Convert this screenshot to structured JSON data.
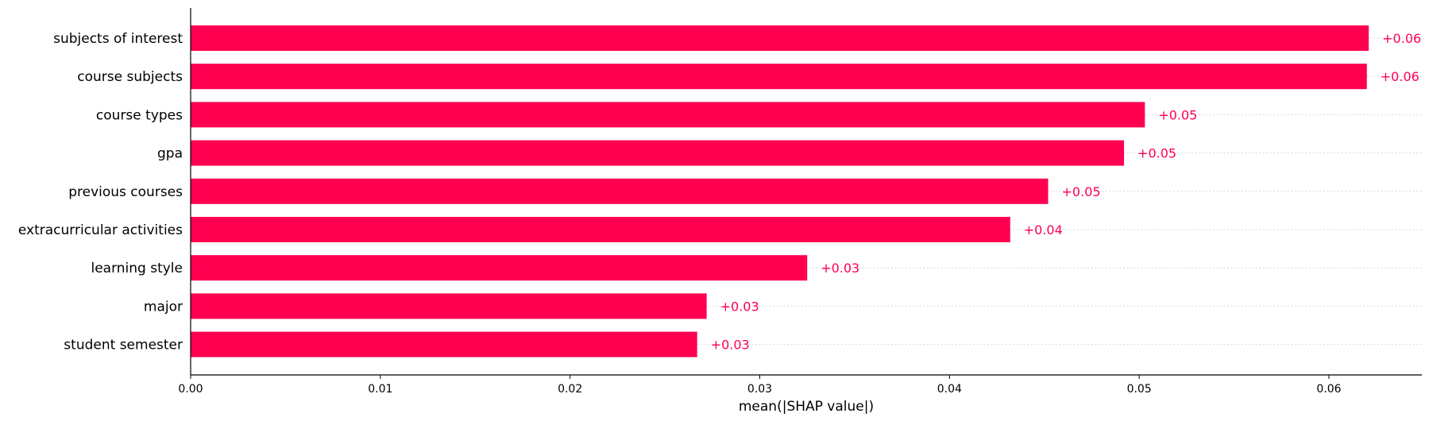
{
  "chart_data": {
    "type": "bar",
    "orientation": "horizontal",
    "categories": [
      "subjects of interest",
      "course subjects",
      "course types",
      "gpa",
      "previous courses",
      "extracurricular activities",
      "learning style",
      "major",
      "student semester"
    ],
    "values": [
      0.0621,
      0.062,
      0.0503,
      0.0492,
      0.0452,
      0.0432,
      0.0325,
      0.0272,
      0.0267
    ],
    "value_labels": [
      "+0.06",
      "+0.06",
      "+0.05",
      "+0.05",
      "+0.05",
      "+0.04",
      "+0.03",
      "+0.03",
      "+0.03"
    ],
    "xlabel": "mean(|SHAP value|)",
    "ylabel": "",
    "title": "",
    "xlim": [
      0,
      0.0685
    ],
    "xticks": [
      "0.00",
      "0.01",
      "0.02",
      "0.03",
      "0.04",
      "0.05",
      "0.06"
    ],
    "grid": "dotted horizontal guide per row",
    "legend": "none",
    "bar_color": "#ff0051",
    "label_color": "#ff0051"
  }
}
